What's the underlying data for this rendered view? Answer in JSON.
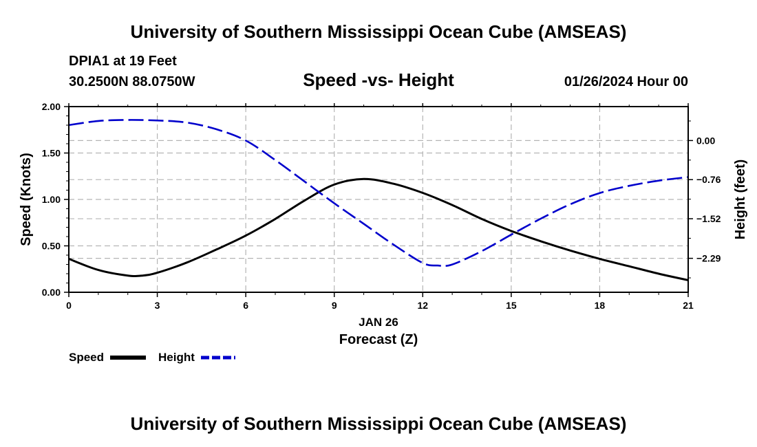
{
  "header": {
    "title": "University of Southern Mississippi Ocean Cube (AMSEAS)",
    "station": "DPIA1 at 19 Feet",
    "coords": "30.2500N  88.0750W",
    "subtitle": "Speed -vs- Height",
    "datetime": "01/26/2024 Hour 00"
  },
  "footer": {
    "title": "University of Southern Mississippi Ocean Cube (AMSEAS)"
  },
  "legend": {
    "speed_label": "Speed",
    "height_label": "Height"
  },
  "colors": {
    "speed": "#000000",
    "height": "#0000cc",
    "grid": "#b4b4b4"
  },
  "chart_data": {
    "type": "line",
    "title": "Speed -vs- Height",
    "xlabel_date": "JAN 26",
    "xlabel": "Forecast (Z)",
    "ylabel_left": "Speed (Knots)",
    "ylabel_right": "Height (feet)",
    "xlim": [
      0,
      21
    ],
    "ylim_left": [
      0,
      2.0
    ],
    "ylim_right": [
      -2.95,
      0.66
    ],
    "x_ticks": [
      0,
      3,
      6,
      9,
      12,
      15,
      18,
      21
    ],
    "x_tick_labels": [
      "0",
      "3",
      "6",
      "9",
      "12",
      "15",
      "18",
      "21"
    ],
    "y_left_ticks": [
      0,
      0.5,
      1.0,
      1.5,
      2.0
    ],
    "y_left_tick_labels": [
      "0.00",
      "0.50",
      "1.00",
      "1.50",
      "2.00"
    ],
    "y_right_ticks": [
      0.0,
      -0.76,
      -1.52,
      -2.29
    ],
    "y_right_tick_labels": [
      "0.00",
      "−0.76",
      "−1.52",
      "−2.29"
    ],
    "grid": true,
    "series": [
      {
        "name": "Speed",
        "axis": "left",
        "style": "solid",
        "x": [
          0,
          1,
          2,
          2.5,
          3,
          4,
          5,
          6,
          7,
          8,
          9,
          10,
          11,
          12,
          13,
          14,
          15,
          16,
          17,
          18,
          19,
          20,
          21
        ],
        "values": [
          0.36,
          0.24,
          0.18,
          0.18,
          0.21,
          0.32,
          0.46,
          0.61,
          0.79,
          0.99,
          1.16,
          1.22,
          1.17,
          1.07,
          0.94,
          0.79,
          0.66,
          0.55,
          0.45,
          0.36,
          0.28,
          0.2,
          0.13
        ]
      },
      {
        "name": "Height",
        "axis": "right",
        "style": "dashed",
        "x": [
          0,
          1,
          2,
          3,
          4,
          5,
          6,
          7,
          8,
          9,
          10,
          11,
          12,
          12.5,
          13,
          14,
          15,
          16,
          17,
          18,
          19,
          20,
          21
        ],
        "values": [
          0.3,
          0.38,
          0.4,
          0.39,
          0.35,
          0.22,
          0.0,
          -0.38,
          -0.8,
          -1.22,
          -1.62,
          -2.02,
          -2.38,
          -2.43,
          -2.41,
          -2.15,
          -1.83,
          -1.52,
          -1.24,
          -1.02,
          -0.88,
          -0.78,
          -0.71
        ]
      }
    ]
  }
}
